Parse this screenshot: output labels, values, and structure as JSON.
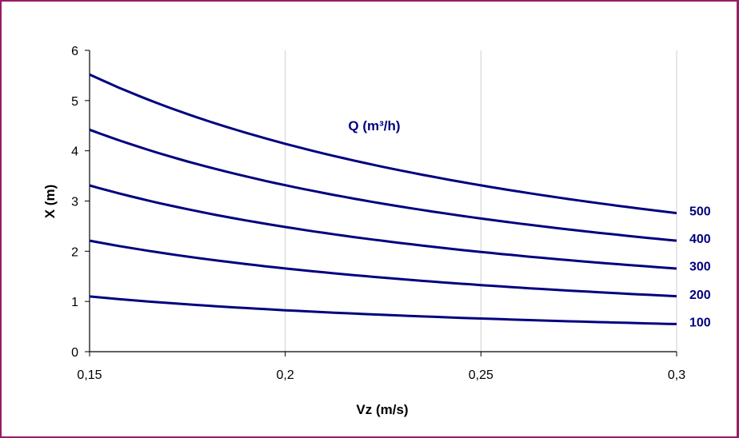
{
  "chart_data": {
    "type": "line",
    "title": "",
    "xlabel": "Vz (m/s)",
    "ylabel": "X (m)",
    "annotation": "Q (m³/h)",
    "xlim": [
      0.15,
      0.3
    ],
    "ylim": [
      0,
      6
    ],
    "x_ticks": [
      "0,15",
      "0,2",
      "0,25",
      "0,3"
    ],
    "y_ticks": [
      "0",
      "1",
      "2",
      "3",
      "4",
      "5",
      "6"
    ],
    "grid": "vertical",
    "line_color": "#00007f",
    "x": [
      0.15,
      0.2,
      0.25,
      0.3
    ],
    "series": [
      {
        "name": "500",
        "values": [
          5.52,
          4.14,
          3.31,
          2.76
        ]
      },
      {
        "name": "400",
        "values": [
          4.42,
          3.31,
          2.65,
          2.21
        ]
      },
      {
        "name": "300",
        "values": [
          3.31,
          2.48,
          1.99,
          1.66
        ]
      },
      {
        "name": "200",
        "values": [
          2.21,
          1.66,
          1.33,
          1.1
        ]
      },
      {
        "name": "100",
        "values": [
          1.1,
          0.83,
          0.66,
          0.55
        ]
      }
    ]
  }
}
